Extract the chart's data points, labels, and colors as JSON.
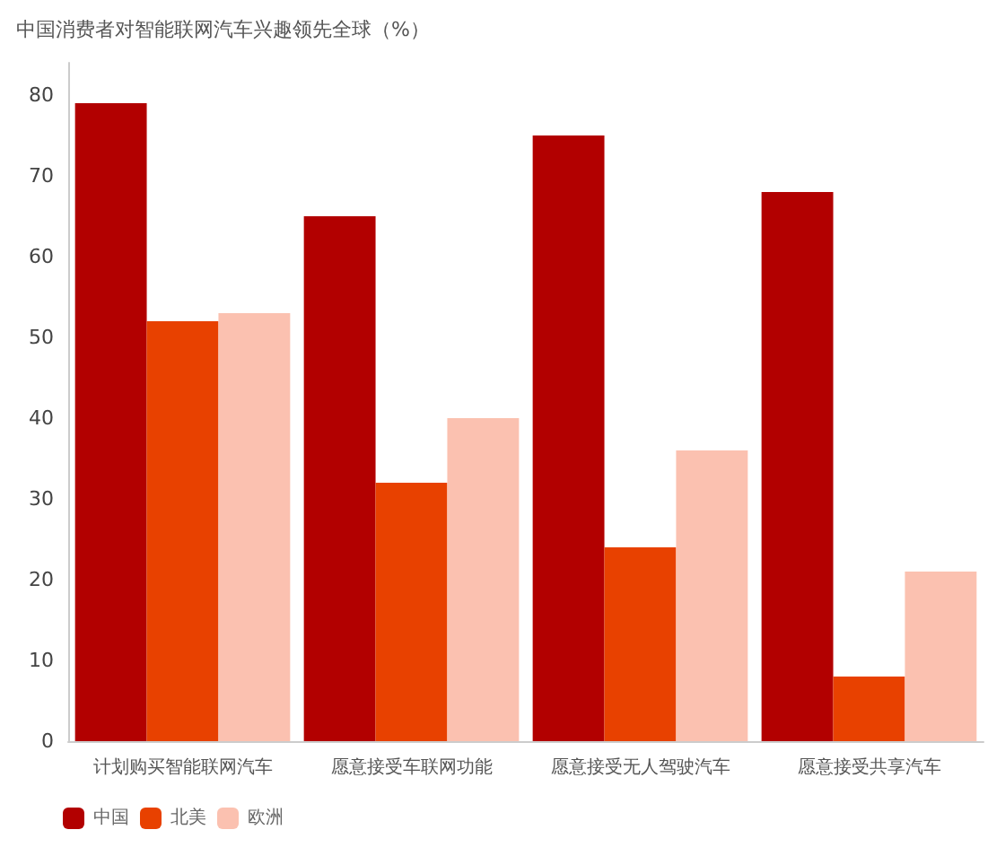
{
  "chart_data": {
    "type": "bar",
    "title": "中国消费者对智能联网汽车兴趣领先全球（%）",
    "categories": [
      "计划购买智能联网汽车",
      "愿意接受车联网功能",
      "愿意接受无人驾驶汽车",
      "愿意接受共享汽车"
    ],
    "series": [
      {
        "name": "中国",
        "color": "#b20000",
        "values": [
          79,
          65,
          75,
          68
        ]
      },
      {
        "name": "北美",
        "color": "#e84100",
        "values": [
          52,
          32,
          24,
          8
        ]
      },
      {
        "name": "欧洲",
        "color": "#fbc1b0",
        "values": [
          53,
          40,
          36,
          21
        ]
      }
    ],
    "ylim": [
      0,
      84
    ],
    "yticks": [
      0,
      10,
      20,
      30,
      40,
      50,
      60,
      70,
      80
    ],
    "grid": false,
    "legend": "bottom left"
  }
}
